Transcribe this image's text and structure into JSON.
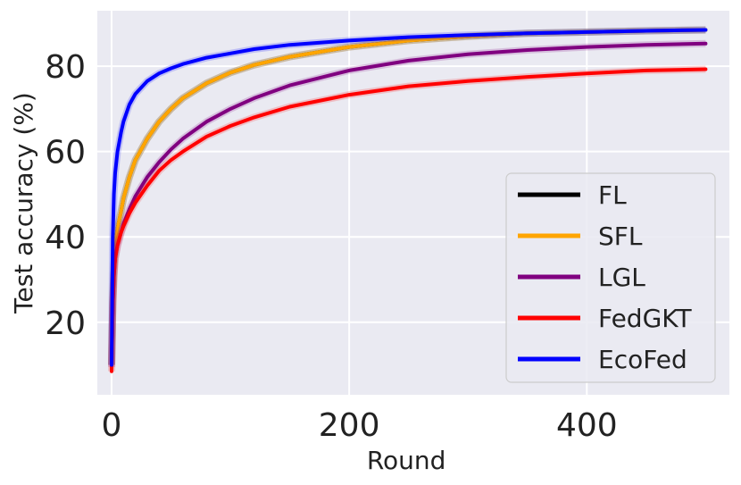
{
  "chart_data": {
    "type": "line",
    "title": "",
    "xlabel": "Round",
    "ylabel": "Test accuracy (%)",
    "xlim": [
      -12,
      520
    ],
    "ylim": [
      3,
      93
    ],
    "x_ticks": [
      0,
      200,
      400
    ],
    "y_ticks": [
      20,
      40,
      60,
      80
    ],
    "grid": true,
    "legend_position": "lower-right",
    "series": [
      {
        "name": "FL",
        "color": "#000000",
        "x": [
          0,
          1,
          2,
          3,
          5,
          8,
          10,
          15,
          20,
          30,
          40,
          50,
          60,
          80,
          100,
          120,
          150,
          200,
          250,
          300,
          350,
          400,
          450,
          500
        ],
        "values": [
          10,
          25,
          33,
          38,
          42,
          46,
          49,
          54,
          58,
          63,
          67,
          70,
          72.5,
          76,
          78.5,
          80.3,
          82.2,
          84.5,
          86,
          87,
          87.7,
          88,
          88.3,
          88.5
        ]
      },
      {
        "name": "SFL",
        "color": "#FFA500",
        "x": [
          0,
          1,
          2,
          3,
          5,
          8,
          10,
          15,
          20,
          30,
          40,
          50,
          60,
          80,
          100,
          120,
          150,
          200,
          250,
          300,
          350,
          400,
          450,
          500
        ],
        "values": [
          10,
          25,
          33,
          38,
          42,
          46,
          49,
          54,
          58,
          63,
          67,
          70,
          72.5,
          76,
          78.5,
          80.3,
          82.2,
          84.5,
          86,
          87,
          87.7,
          88,
          88.3,
          88.5
        ]
      },
      {
        "name": "LGL",
        "color": "#800080",
        "x": [
          0,
          1,
          2,
          3,
          5,
          8,
          10,
          15,
          20,
          30,
          40,
          50,
          60,
          80,
          100,
          120,
          150,
          200,
          250,
          300,
          350,
          400,
          450,
          500
        ],
        "values": [
          9.5,
          24,
          31,
          35,
          38,
          41,
          43,
          46.5,
          49.5,
          54,
          57.5,
          60.5,
          63,
          67,
          70,
          72.5,
          75.5,
          79,
          81.3,
          82.8,
          83.8,
          84.5,
          85,
          85.3
        ]
      },
      {
        "name": "FedGKT",
        "color": "#FF0000",
        "x": [
          0,
          1,
          2,
          3,
          5,
          8,
          10,
          15,
          20,
          30,
          40,
          50,
          60,
          80,
          100,
          120,
          150,
          200,
          250,
          300,
          350,
          400,
          450,
          500
        ],
        "values": [
          8.5,
          24,
          31,
          35,
          38,
          41,
          42.5,
          45.5,
          48,
          52,
          55.5,
          58,
          60,
          63.5,
          66,
          68,
          70.5,
          73.3,
          75.3,
          76.5,
          77.5,
          78.3,
          79,
          79.3
        ]
      },
      {
        "name": "EcoFed",
        "color": "#0000FF",
        "x": [
          0,
          1,
          2,
          3,
          5,
          8,
          10,
          15,
          20,
          30,
          40,
          50,
          60,
          80,
          100,
          120,
          150,
          200,
          250,
          300,
          350,
          400,
          450,
          500
        ],
        "values": [
          10,
          40,
          50,
          55,
          60,
          64.5,
          67,
          71,
          73.5,
          76.5,
          78.3,
          79.5,
          80.5,
          82,
          83,
          84,
          85,
          86,
          86.8,
          87.3,
          87.7,
          88,
          88.3,
          88.5
        ]
      }
    ]
  }
}
